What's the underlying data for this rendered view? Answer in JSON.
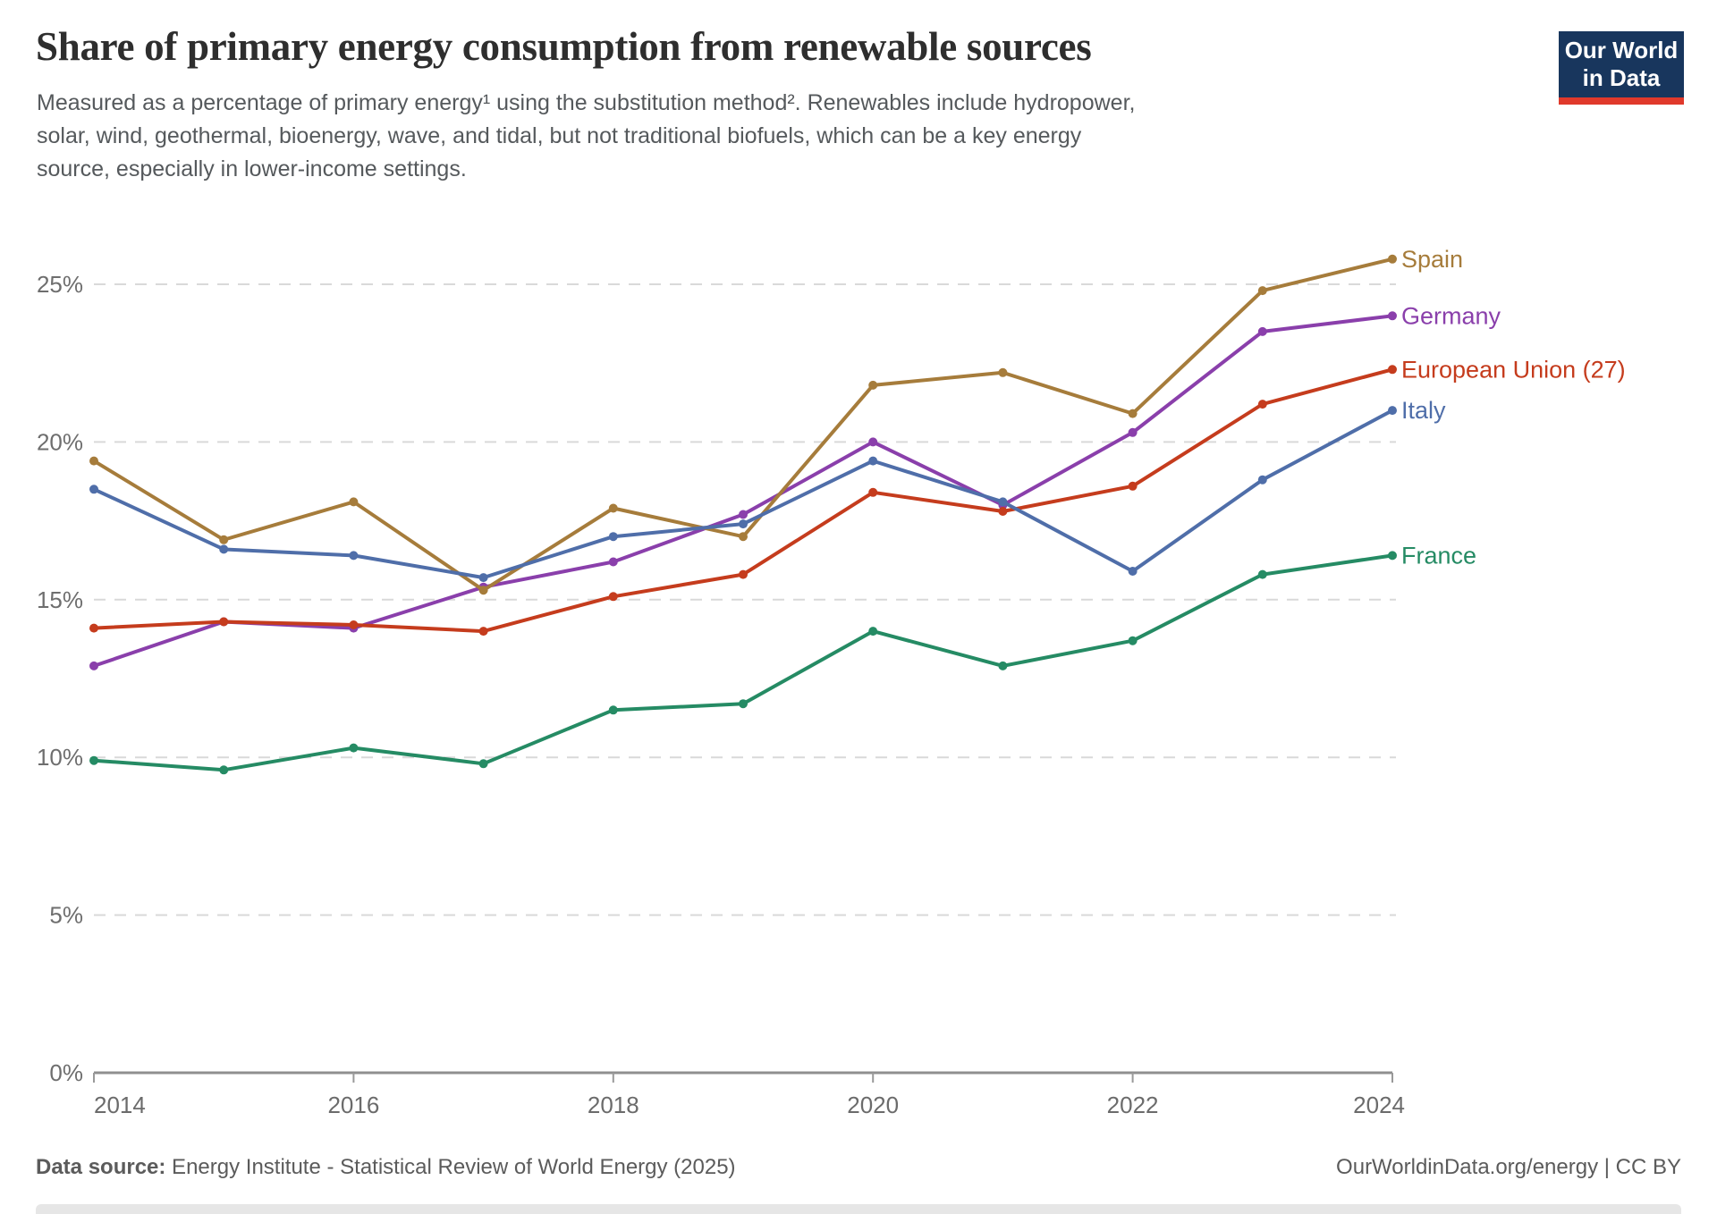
{
  "header": {
    "title": "Share of primary energy consumption from renewable sources",
    "subtitle_lines": [
      "Measured as a percentage of primary energy¹ using the substitution method². Renewables include hydropower,",
      "solar, wind, geothermal, bioenergy, wave, and tidal, but not traditional biofuels, which can be a key energy",
      "source, especially in lower-income settings."
    ],
    "logo": {
      "line1": "Our World",
      "line2": "in Data"
    }
  },
  "chart_data": {
    "type": "line",
    "title": "Share of primary energy consumption from renewable sources",
    "x": [
      2014,
      2015,
      2016,
      2017,
      2018,
      2019,
      2020,
      2021,
      2022,
      2023,
      2024
    ],
    "series": [
      {
        "name": "Spain",
        "color": "#A67C3B",
        "values": [
          19.4,
          16.9,
          18.1,
          15.3,
          17.9,
          17.0,
          21.8,
          22.2,
          20.9,
          24.8,
          25.8
        ]
      },
      {
        "name": "Germany",
        "color": "#8A3FAB",
        "values": [
          12.9,
          14.3,
          14.1,
          15.4,
          16.2,
          17.7,
          20.0,
          18.0,
          20.3,
          23.5,
          24.0
        ]
      },
      {
        "name": "European Union (27)",
        "color": "#C53C1D",
        "values": [
          14.1,
          14.3,
          14.2,
          14.0,
          15.1,
          15.8,
          18.4,
          17.8,
          18.6,
          21.2,
          22.3
        ]
      },
      {
        "name": "Italy",
        "color": "#4F6EA9",
        "values": [
          18.5,
          16.6,
          16.4,
          15.7,
          17.0,
          17.4,
          19.4,
          18.1,
          15.9,
          18.8,
          21.0
        ]
      },
      {
        "name": "France",
        "color": "#258B64",
        "values": [
          9.9,
          9.6,
          10.3,
          9.8,
          11.5,
          11.7,
          14.0,
          12.9,
          13.7,
          15.8,
          16.4
        ]
      }
    ],
    "yticks": [
      0,
      5,
      10,
      15,
      20,
      25
    ],
    "ytick_suffix": "%",
    "xticks": [
      2014,
      2016,
      2018,
      2020,
      2022,
      2024
    ],
    "ylim": [
      0,
      26.5
    ],
    "xlabel": "",
    "ylabel": "",
    "grid": "horizontal-dashed",
    "legend_position": "right-of-line-ends"
  },
  "footer": {
    "source_label": "Data source:",
    "source_text": " Energy Institute - Statistical Review of World Energy (2025)",
    "attribution": "OurWorldinData.org/energy | CC BY"
  }
}
